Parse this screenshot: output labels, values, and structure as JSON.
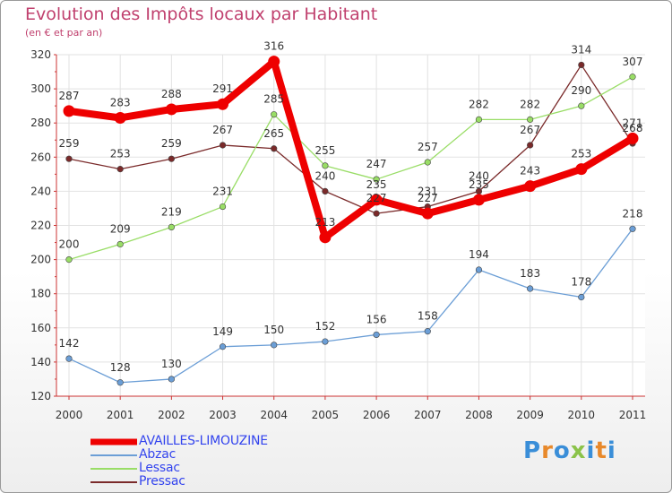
{
  "header": {
    "title": "Evolution des Impôts locaux par Habitant",
    "subtitle": "(en € et par an)"
  },
  "logo": {
    "text": "Proxiti",
    "letter_colors": [
      "#3a8ed8",
      "#e8892b",
      "#3a8ed8",
      "#8bc34a",
      "#3a8ed8",
      "#e8892b",
      "#3a8ed8"
    ]
  },
  "chart_data": {
    "type": "line",
    "title": "Evolution des Impôts locaux par Habitant",
    "subtitle": "(en € et par an)",
    "x": [
      "2000",
      "2001",
      "2002",
      "2003",
      "2004",
      "2005",
      "2006",
      "2007",
      "2008",
      "2009",
      "2010",
      "2011"
    ],
    "ylim": [
      120,
      320
    ],
    "yticks": [
      120,
      140,
      160,
      180,
      200,
      220,
      240,
      260,
      280,
      300,
      320
    ],
    "grid": true,
    "series": [
      {
        "name": "Pressac",
        "color": "#7a2a2a",
        "values": [
          259,
          253,
          259,
          267,
          265,
          240,
          227,
          231,
          240,
          267,
          314,
          268
        ],
        "labels": [
          "259",
          "253",
          "259",
          "267",
          "265",
          "240",
          "227",
          "231",
          "240",
          "267",
          "314",
          "268"
        ]
      },
      {
        "name": "Lessac",
        "color": "#99dd66",
        "values": [
          200,
          209,
          219,
          231,
          285,
          255,
          247,
          257,
          282,
          282,
          290,
          307
        ],
        "labels": [
          "200",
          "209",
          "219",
          "231",
          "285",
          "255",
          "247",
          "257",
          "282",
          "282",
          "290",
          "307"
        ]
      },
      {
        "name": "Abzac",
        "color": "#6b9ed6",
        "values": [
          142,
          128,
          130,
          149,
          150,
          152,
          156,
          158,
          194,
          183,
          178,
          218
        ],
        "labels": [
          "142",
          "128",
          "130",
          "149",
          "150",
          "152",
          "156",
          "158",
          "194",
          "183",
          "178",
          "218"
        ]
      },
      {
        "name": "AVAILLES-LIMOUZINE",
        "color": "#ee0000",
        "values": [
          287,
          283,
          288,
          291,
          316,
          213,
          235,
          227,
          235,
          243,
          253,
          271
        ],
        "labels": [
          "287",
          "283",
          "288",
          "291",
          "316",
          "213",
          "235",
          "227",
          "235",
          "243",
          "253",
          "271"
        ]
      }
    ],
    "legend": [
      "AVAILLES-LIMOUZINE",
      "Abzac",
      "Lessac",
      "Pressac"
    ]
  }
}
